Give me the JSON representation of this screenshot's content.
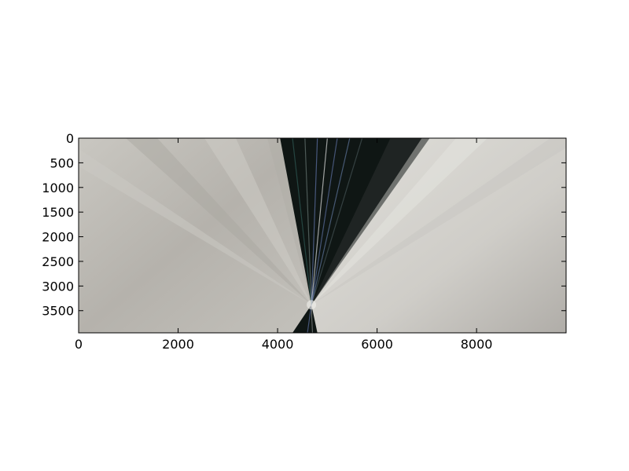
{
  "chart_data": {
    "type": "heatmap",
    "title": "",
    "xlabel": "",
    "ylabel": "",
    "xlim": [
      0,
      9800
    ],
    "ylim": [
      3950,
      0
    ],
    "x_ticks": [
      0,
      2000,
      4000,
      6000,
      8000
    ],
    "y_ticks": [
      0,
      500,
      1000,
      1500,
      2000,
      2500,
      3000,
      3500
    ],
    "x_tick_labels": [
      "0",
      "2000",
      "4000",
      "6000",
      "8000"
    ],
    "y_tick_labels": [
      "0",
      "500",
      "1000",
      "1500",
      "2000",
      "2500",
      "3000",
      "3500"
    ],
    "grid": false,
    "legend": "none",
    "image_description_values": {
      "convergence_point": [
        4680,
        3380
      ],
      "dark_wedge_top_range": [
        4050,
        6900
      ],
      "dark_wedge_bottom_range": [
        4300,
        4800
      ]
    },
    "colors": {
      "background_gray": "#b7b4ae",
      "light_gray": "#d8d7d2",
      "dark": "#0f1614",
      "teal": "#2f5a55",
      "blue_streak": "#5c6fa0"
    }
  }
}
